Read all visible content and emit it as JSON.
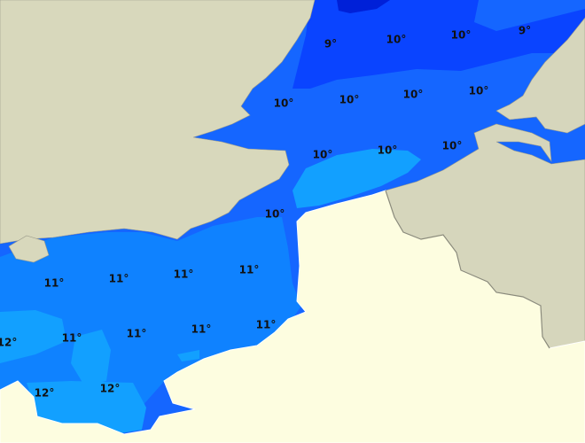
{
  "labels": [
    {
      "text": "9°"
    },
    {
      "text": "10°"
    },
    {
      "text": "10°"
    },
    {
      "text": "9°"
    },
    {
      "text": "10°"
    },
    {
      "text": "10°"
    },
    {
      "text": "10°"
    },
    {
      "text": "10°"
    },
    {
      "text": "10°"
    },
    {
      "text": "10°"
    },
    {
      "text": "10°"
    },
    {
      "text": "10°"
    },
    {
      "text": "11°"
    },
    {
      "text": "11°"
    },
    {
      "text": "11°"
    },
    {
      "text": "11°"
    },
    {
      "text": "11°"
    },
    {
      "text": "11°"
    },
    {
      "text": "11°"
    },
    {
      "text": "11°"
    },
    {
      "text": "12°"
    },
    {
      "text": "12°"
    },
    {
      "text": "12°"
    }
  ]
}
